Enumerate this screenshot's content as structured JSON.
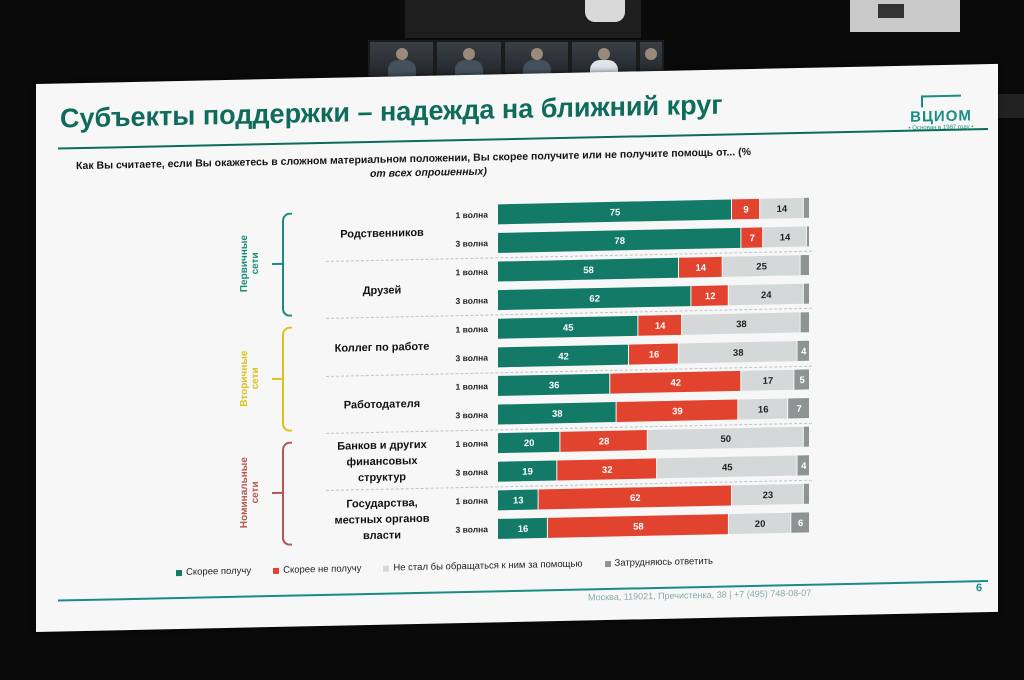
{
  "slide": {
    "title": "Субъекты поддержки – надежда на ближний круг",
    "question": "Как Вы считаете, если Вы окажетесь в сложном материальном положении, Вы скорее получите или не получите помощь от... (%",
    "question_sub": "от всех опрошенных)",
    "logo_text": "ВЦИОМ",
    "logo_sub": "• Основан в 1987 году •",
    "footer": "Москва, 119021, Пречистенка, 38 | +7 (495) 748-08-07",
    "page_number": "6"
  },
  "groups": [
    {
      "label_line1": "Первичные",
      "label_line2": "сети",
      "color": "#1a8c7a"
    },
    {
      "label_line1": "Вторичные",
      "label_line2": "сети",
      "color": "#d9c21f"
    },
    {
      "label_line1": "Номинальные",
      "label_line2": "сети",
      "color": "#b5574f"
    }
  ],
  "categories": [
    {
      "lines": [
        "Родственников"
      ]
    },
    {
      "lines": [
        "Друзей"
      ]
    },
    {
      "lines": [
        "Коллег по работе"
      ]
    },
    {
      "lines": [
        "Работодателя"
      ]
    },
    {
      "lines": [
        "Банков и других",
        "финансовых",
        "структур"
      ]
    },
    {
      "lines": [
        "Государства,",
        "местных органов",
        "власти"
      ]
    }
  ],
  "chart_data": {
    "type": "bar",
    "orientation": "horizontal-stacked-100",
    "rows": [
      {
        "category": "Родственников",
        "wave": "1 волна"
      },
      {
        "category": "Родственников",
        "wave": "3 волна"
      },
      {
        "category": "Друзей",
        "wave": "1 волна"
      },
      {
        "category": "Друзей",
        "wave": "3 волна"
      },
      {
        "category": "Коллег по работе",
        "wave": "1 волна"
      },
      {
        "category": "Коллег по работе",
        "wave": "3 волна"
      },
      {
        "category": "Работодателя",
        "wave": "1 волна"
      },
      {
        "category": "Работодателя",
        "wave": "3 волна"
      },
      {
        "category": "Банков и других финансовых структур",
        "wave": "1 волна"
      },
      {
        "category": "Банков и других финансовых структур",
        "wave": "3 волна"
      },
      {
        "category": "Государства, местных органов власти",
        "wave": "1 волна"
      },
      {
        "category": "Государства, местных органов власти",
        "wave": "3 волна"
      }
    ],
    "series": [
      {
        "name": "Скорее получу",
        "color": "#127a66",
        "label_color": "#ffffff",
        "values": [
          75,
          78,
          58,
          62,
          45,
          42,
          36,
          38,
          20,
          19,
          13,
          16
        ]
      },
      {
        "name": "Скорее не получу",
        "color": "#e2432f",
        "label_color": "#ffffff",
        "values": [
          9,
          7,
          14,
          12,
          14,
          16,
          42,
          39,
          28,
          32,
          62,
          58
        ]
      },
      {
        "name": "Не стал бы обращаться к ним за помощью",
        "color": "#d5d8d8",
        "label_color": "#222222",
        "values": [
          14,
          14,
          25,
          24,
          38,
          38,
          17,
          16,
          50,
          45,
          23,
          20
        ]
      },
      {
        "name": "Затрудняюсь ответить",
        "color": "#8e9393",
        "label_color": "#ffffff",
        "values": [
          2,
          1,
          3,
          2,
          3,
          4,
          5,
          7,
          2,
          4,
          2,
          6
        ],
        "labels": [
          "",
          "",
          "",
          "",
          "",
          "4",
          "5",
          "7",
          "",
          "4",
          "",
          "6"
        ]
      }
    ],
    "legend_position": "bottom"
  }
}
